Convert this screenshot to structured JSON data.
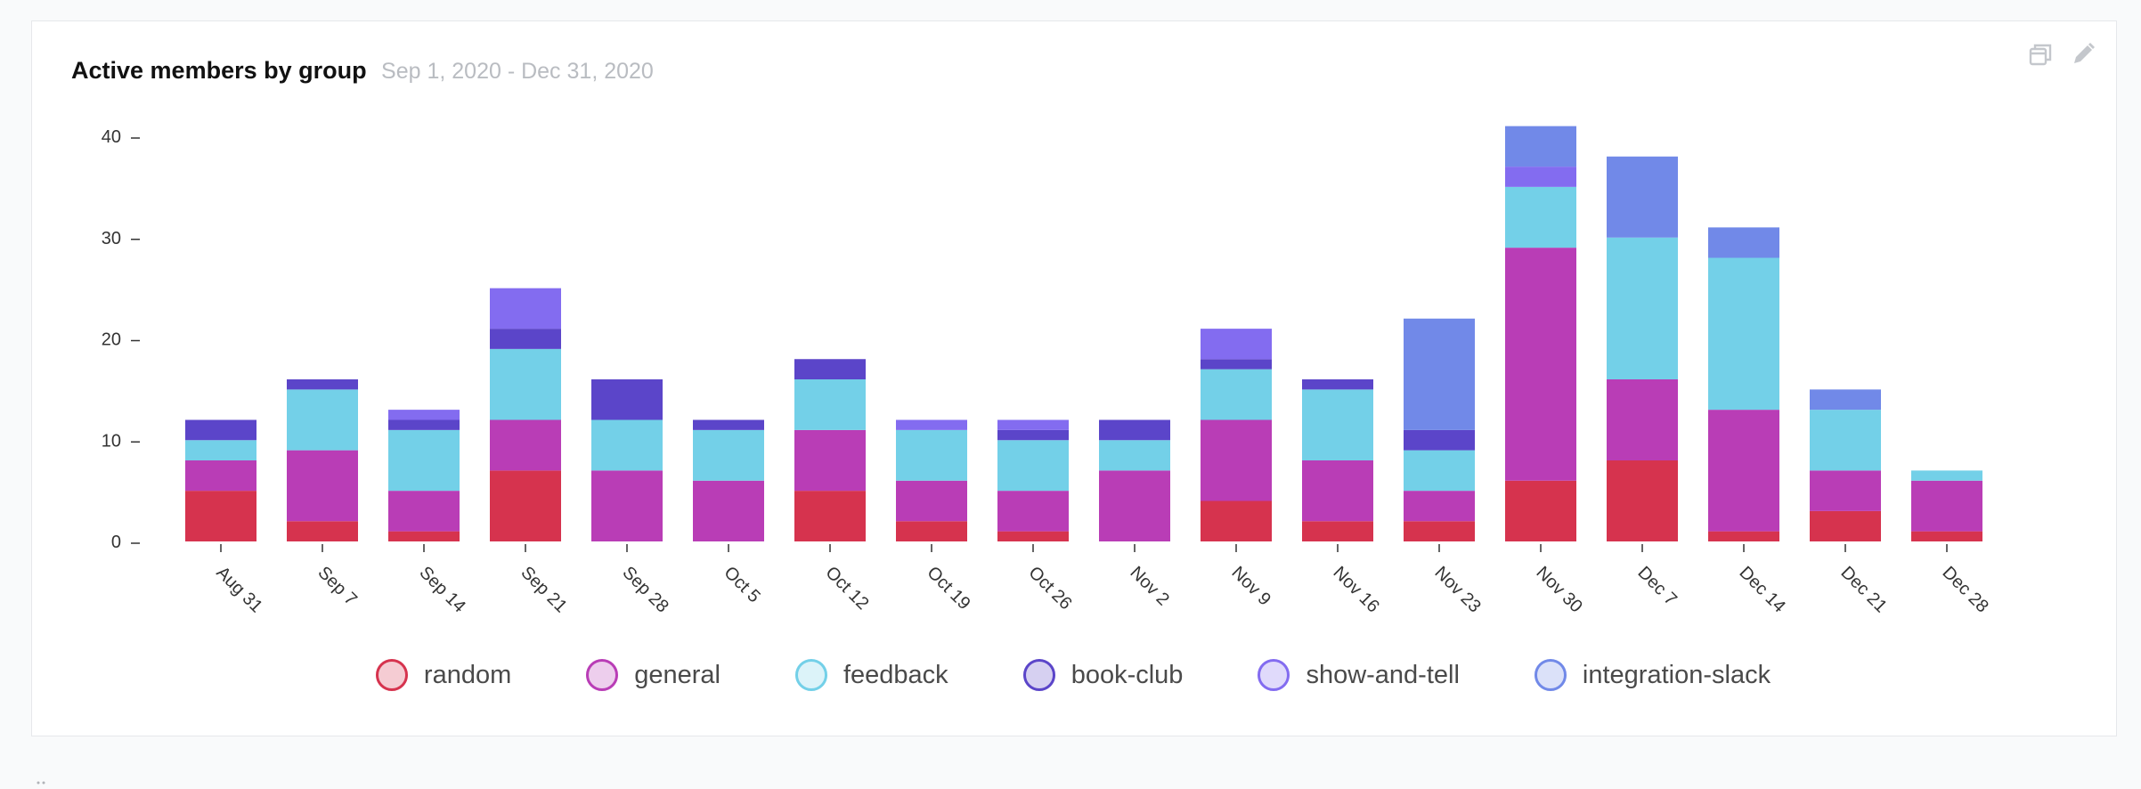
{
  "header": {
    "title": "Active members by group",
    "subtitle": "Sep 1, 2020 - Dec 31, 2020"
  },
  "toolbar": {
    "icons": [
      "duplicate-icon",
      "pencil-icon"
    ]
  },
  "colors": {
    "random": "#d6334e",
    "general": "#b93db6",
    "feedback": "#73d0e8",
    "book-club": "#5b45c9",
    "show-and-tell": "#836cf0",
    "integration-slack": "#7189e8"
  },
  "chart_data": {
    "type": "bar",
    "stacked": true,
    "categories": [
      "Aug 31",
      "Sep 7",
      "Sep 14",
      "Sep 21",
      "Sep 28",
      "Oct 5",
      "Oct 12",
      "Oct 19",
      "Oct 26",
      "Nov 2",
      "Nov 9",
      "Nov 16",
      "Nov 23",
      "Nov 30",
      "Dec 7",
      "Dec 14",
      "Dec 21",
      "Dec 28"
    ],
    "yticks": [
      0,
      10,
      20,
      30,
      40
    ],
    "ylim": [
      0,
      40
    ],
    "legend_position": "bottom",
    "grid": false,
    "series": [
      {
        "name": "random",
        "color": "#d6334e",
        "values": [
          5,
          2,
          1,
          7,
          0,
          0,
          5,
          2,
          1,
          0,
          4,
          2,
          2,
          6,
          8,
          1,
          3,
          1
        ]
      },
      {
        "name": "general",
        "color": "#b93db6",
        "values": [
          3,
          7,
          4,
          5,
          7,
          6,
          6,
          4,
          4,
          7,
          8,
          6,
          3,
          23,
          8,
          12,
          4,
          5
        ]
      },
      {
        "name": "feedback",
        "color": "#73d0e8",
        "values": [
          2,
          6,
          6,
          7,
          5,
          5,
          5,
          5,
          5,
          3,
          5,
          7,
          4,
          6,
          14,
          15,
          6,
          1
        ]
      },
      {
        "name": "book-club",
        "color": "#5b45c9",
        "values": [
          2,
          1,
          1,
          2,
          4,
          1,
          2,
          0,
          1,
          2,
          1,
          1,
          2,
          0,
          0,
          0,
          0,
          0
        ]
      },
      {
        "name": "show-and-tell",
        "color": "#836cf0",
        "values": [
          0,
          0,
          1,
          4,
          0,
          0,
          0,
          1,
          1,
          0,
          3,
          0,
          0,
          2,
          0,
          0,
          0,
          0
        ]
      },
      {
        "name": "integration-slack",
        "color": "#7189e8",
        "values": [
          0,
          0,
          0,
          0,
          0,
          0,
          0,
          0,
          0,
          0,
          0,
          0,
          11,
          4,
          8,
          3,
          2,
          0
        ]
      }
    ]
  }
}
